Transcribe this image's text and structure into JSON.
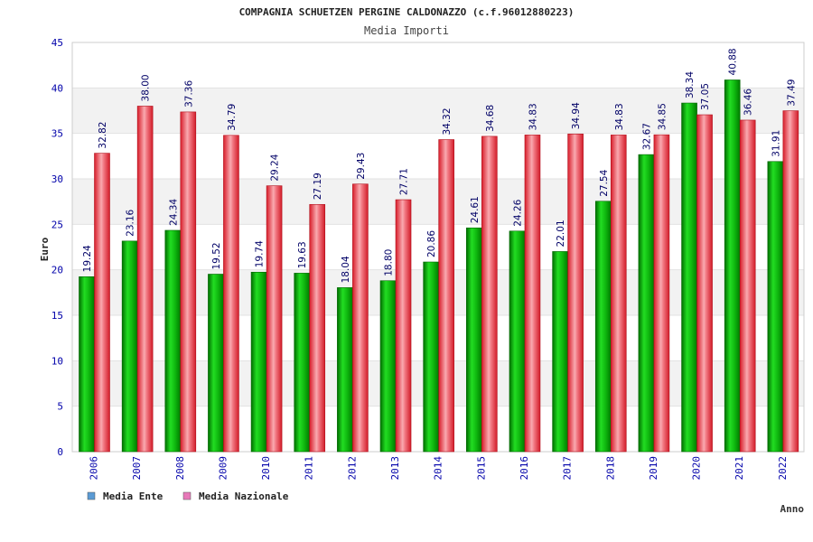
{
  "header": {
    "title": "COMPAGNIA SCHUETZEN PERGINE CALDONAZZO (c.f.96012880223)",
    "subtitle": "Media Importi"
  },
  "colors": {
    "ente_green": "#00aa00",
    "nazionale_red": "#e8323a",
    "axis_blue": "#0000aa",
    "grid_band": "#f2f2f2"
  },
  "chart_data": {
    "type": "bar",
    "title": "COMPAGNIA SCHUETZEN PERGINE CALDONAZZO (c.f.96012880223)",
    "subtitle": "Media Importi",
    "xlabel": "Anno",
    "ylabel": "Euro",
    "ylim": [
      0,
      45
    ],
    "yticks": [
      0,
      5,
      10,
      15,
      20,
      25,
      30,
      35,
      40,
      45
    ],
    "grid": true,
    "legend_position": "bottom-left",
    "categories": [
      "2006",
      "2007",
      "2008",
      "2009",
      "2010",
      "2011",
      "2012",
      "2013",
      "2014",
      "2015",
      "2016",
      "2017",
      "2018",
      "2019",
      "2020",
      "2021",
      "2022"
    ],
    "series": [
      {
        "name": "Media Ente",
        "legend_color": "#5b9bd5",
        "values": [
          19.24,
          23.16,
          24.34,
          19.52,
          19.74,
          19.63,
          18.04,
          18.8,
          20.86,
          24.61,
          24.26,
          22.01,
          27.54,
          32.67,
          38.34,
          40.88,
          31.91
        ],
        "labels": [
          "19.24",
          "23.16",
          "24.34",
          "19.52",
          "19.74",
          "19.63",
          "18.04",
          "18.80",
          "20.86",
          "24.61",
          "24.26",
          "22.01",
          "27.54",
          "32.67",
          "38.34",
          "40.88",
          "31.91"
        ]
      },
      {
        "name": "Media Nazionale",
        "legend_color": "#e879b9",
        "values": [
          32.82,
          38.0,
          37.36,
          34.79,
          29.24,
          27.19,
          29.43,
          27.71,
          34.32,
          34.68,
          34.83,
          34.94,
          34.83,
          34.85,
          37.05,
          36.46,
          37.49
        ],
        "labels": [
          "32.82",
          "38.00",
          "37.36",
          "34.79",
          "29.24",
          "27.19",
          "29.43",
          "27.71",
          "34.32",
          "34.68",
          "34.83",
          "34.94",
          "34.83",
          "34.85",
          "37.05",
          "36.46",
          "37.49"
        ]
      }
    ]
  }
}
